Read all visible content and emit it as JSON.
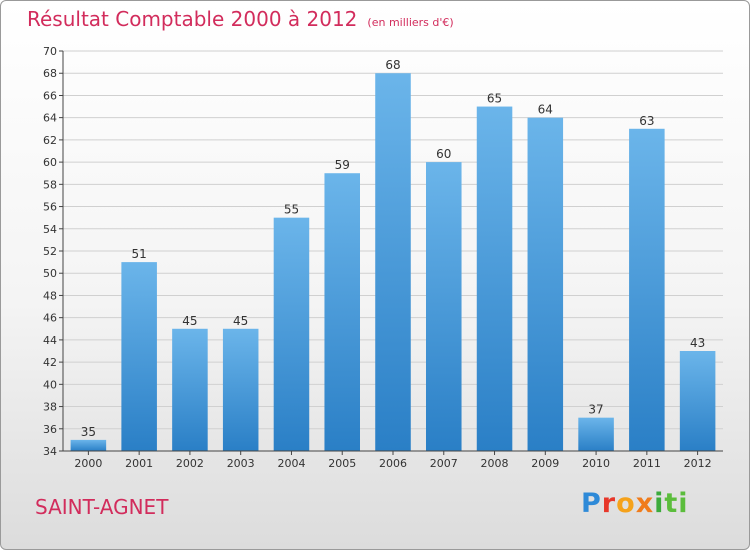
{
  "title": "Résultat Comptable 2000 à 2012",
  "subtitle": "(en milliers d'€)",
  "commune": "SAINT-AGNET",
  "logo": {
    "parts": [
      "P",
      "r",
      "o",
      "x",
      "i",
      "ti"
    ]
  },
  "colors": {
    "title": "#d22c5c",
    "bar_light": "#6bb5ea",
    "bar_dark": "#2a7fc6",
    "grid": "#d0d0d0",
    "axis": "#444444"
  },
  "chart_data": {
    "type": "bar",
    "title": "Résultat Comptable 2000 à 2012",
    "xlabel": "",
    "ylabel": "",
    "categories": [
      "2000",
      "2001",
      "2002",
      "2003",
      "2004",
      "2005",
      "2006",
      "2007",
      "2008",
      "2009",
      "2010",
      "2011",
      "2012"
    ],
    "values": [
      35,
      51,
      45,
      45,
      55,
      59,
      68,
      60,
      65,
      64,
      37,
      63,
      43
    ],
    "ylim": [
      34,
      70
    ],
    "yticks": [
      34,
      36,
      38,
      40,
      42,
      44,
      46,
      48,
      50,
      52,
      54,
      56,
      58,
      60,
      62,
      64,
      66,
      68,
      70
    ],
    "grid": true
  }
}
